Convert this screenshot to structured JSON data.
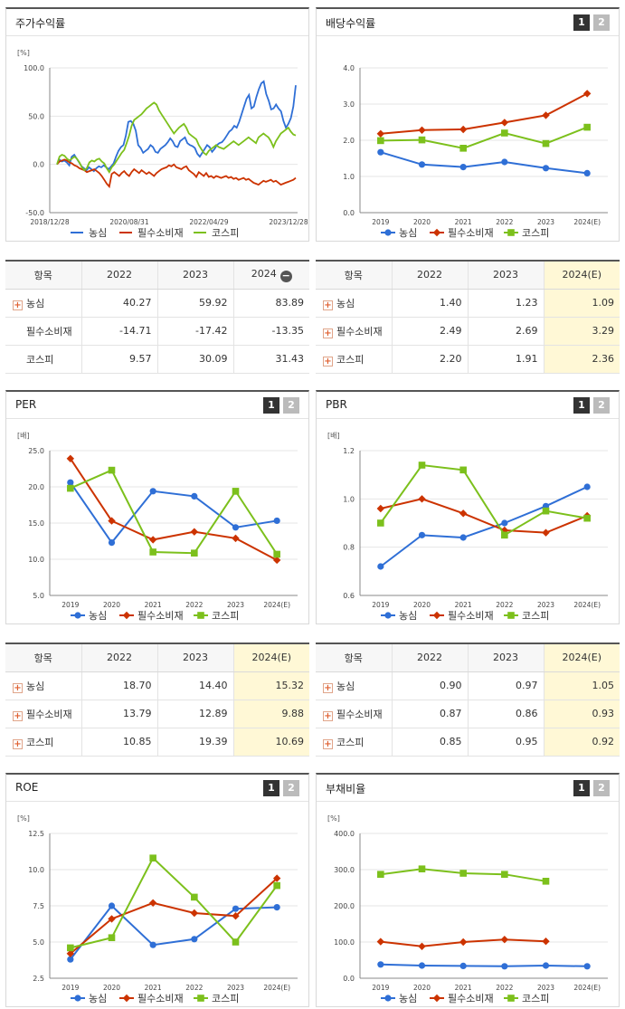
{
  "colors": {
    "nongshim": "#2f6fd6",
    "staples": "#cc3300",
    "kospi": "#7cc01c"
  },
  "legend": [
    "농심",
    "필수소비재",
    "코스피"
  ],
  "pager": {
    "p1": "1",
    "p2": "2"
  },
  "panels": {
    "price": {
      "title": "주가수익률",
      "unit": "[%]"
    },
    "div": {
      "title": "배당수익률",
      "unit": ""
    },
    "per": {
      "title": "PER",
      "unit": "[배]"
    },
    "pbr": {
      "title": "PBR",
      "unit": "[배]"
    },
    "roe": {
      "title": "ROE",
      "unit": "[%]"
    },
    "debt": {
      "title": "부채비율",
      "unit": "[%]"
    }
  },
  "chart_data": [
    {
      "id": "price",
      "type": "line",
      "title": "주가수익률",
      "ylim": [
        -50,
        100
      ],
      "yticks": [
        "100.0",
        "50.0",
        "0.0",
        "-50.0"
      ],
      "xticks": [
        "2018/12/28",
        "2020/08/31",
        "2022/04/29",
        "2023/12/28"
      ],
      "series": [
        {
          "name": "농심",
          "values": [
            0,
            5,
            3,
            4,
            2,
            -1,
            8,
            10,
            6,
            2,
            -2,
            -4,
            -6,
            -3,
            -5,
            -7,
            -4,
            -2,
            -3,
            -1,
            -3,
            -5,
            -2,
            1,
            8,
            14,
            18,
            20,
            30,
            44,
            45,
            42,
            35,
            20,
            17,
            12,
            14,
            16,
            20,
            18,
            13,
            12,
            16,
            18,
            20,
            23,
            27,
            24,
            19,
            18,
            24,
            26,
            28,
            22,
            20,
            19,
            17,
            11,
            8,
            12,
            16,
            20,
            18,
            13,
            16,
            20,
            22,
            23,
            26,
            30,
            34,
            36,
            40,
            38,
            44,
            52,
            60,
            68,
            72,
            58,
            60,
            70,
            78,
            84,
            86,
            73,
            66,
            57,
            58,
            62,
            58,
            55,
            45,
            38,
            42,
            48,
            60,
            82
          ]
        },
        {
          "name": "필수소비재",
          "values": [
            0,
            3,
            4,
            5,
            4,
            2,
            1,
            -1,
            -2,
            -4,
            -5,
            -6,
            -8,
            -7,
            -6,
            -5,
            -7,
            -9,
            -12,
            -16,
            -20,
            -23,
            -10,
            -8,
            -10,
            -12,
            -9,
            -7,
            -10,
            -12,
            -8,
            -5,
            -7,
            -9,
            -6,
            -8,
            -10,
            -8,
            -10,
            -12,
            -9,
            -7,
            -5,
            -4,
            -3,
            -1,
            -2,
            0,
            -3,
            -4,
            -5,
            -3,
            -2,
            -6,
            -8,
            -10,
            -13,
            -8,
            -10,
            -12,
            -9,
            -13,
            -12,
            -14,
            -12,
            -13,
            -14,
            -13,
            -12,
            -14,
            -13,
            -15,
            -14,
            -16,
            -15,
            -14,
            -16,
            -15,
            -17,
            -19,
            -20,
            -21,
            -19,
            -17,
            -18,
            -17,
            -16,
            -18,
            -17,
            -19,
            -21,
            -20,
            -19,
            -18,
            -17,
            -16,
            -14
          ]
        },
        {
          "name": "코스피",
          "values": [
            0,
            8,
            10,
            9,
            6,
            4,
            6,
            8,
            6,
            2,
            -3,
            -6,
            -4,
            2,
            4,
            3,
            5,
            6,
            3,
            1,
            -4,
            -8,
            -3,
            0,
            4,
            8,
            12,
            15,
            22,
            30,
            40,
            46,
            48,
            50,
            52,
            55,
            58,
            60,
            62,
            64,
            62,
            56,
            52,
            48,
            44,
            40,
            36,
            32,
            35,
            38,
            40,
            42,
            38,
            32,
            30,
            28,
            26,
            20,
            16,
            12,
            10,
            14,
            16,
            18,
            20,
            18,
            17,
            16,
            18,
            20,
            22,
            24,
            22,
            20,
            22,
            24,
            26,
            28,
            26,
            24,
            22,
            28,
            30,
            32,
            30,
            28,
            24,
            18,
            24,
            28,
            32,
            34,
            36,
            38,
            34,
            31,
            30
          ]
        }
      ]
    },
    {
      "id": "div",
      "type": "line",
      "title": "배당수익률",
      "ylim": [
        0,
        4
      ],
      "yticks": [
        "4.0",
        "3.0",
        "2.0",
        "1.0",
        "0.0"
      ],
      "categories": [
        "2019",
        "2020",
        "2021",
        "2022",
        "2023",
        "2024(E)"
      ],
      "series": [
        {
          "name": "농심",
          "values": [
            1.67,
            1.33,
            1.26,
            1.4,
            1.23,
            1.09
          ]
        },
        {
          "name": "필수소비재",
          "values": [
            2.18,
            2.28,
            2.3,
            2.49,
            2.69,
            3.29
          ]
        },
        {
          "name": "코스피",
          "values": [
            1.99,
            2.01,
            1.78,
            2.2,
            1.91,
            2.36
          ]
        }
      ]
    },
    {
      "id": "per",
      "type": "line",
      "title": "PER",
      "ylim": [
        5,
        25
      ],
      "yticks": [
        "25.0",
        "20.0",
        "15.0",
        "10.0",
        "5.0"
      ],
      "categories": [
        "2019",
        "2020",
        "2021",
        "2022",
        "2023",
        "2024(E)"
      ],
      "series": [
        {
          "name": "농심",
          "values": [
            20.6,
            12.3,
            19.4,
            18.7,
            14.4,
            15.32
          ]
        },
        {
          "name": "필수소비재",
          "values": [
            23.9,
            15.3,
            12.7,
            13.79,
            12.89,
            9.88
          ]
        },
        {
          "name": "코스피",
          "values": [
            19.8,
            22.3,
            11.0,
            10.85,
            19.39,
            10.69
          ]
        }
      ]
    },
    {
      "id": "pbr",
      "type": "line",
      "title": "PBR",
      "ylim": [
        0.6,
        1.2
      ],
      "yticks": [
        "1.2",
        "1.0",
        "0.8",
        "0.6"
      ],
      "categories": [
        "2019",
        "2020",
        "2021",
        "2022",
        "2023",
        "2024(E)"
      ],
      "series": [
        {
          "name": "농심",
          "values": [
            0.72,
            0.85,
            0.84,
            0.9,
            0.97,
            1.05
          ]
        },
        {
          "name": "필수소비재",
          "values": [
            0.96,
            1.0,
            0.94,
            0.87,
            0.86,
            0.93
          ]
        },
        {
          "name": "코스피",
          "values": [
            0.9,
            1.14,
            1.12,
            0.85,
            0.95,
            0.92
          ]
        }
      ]
    },
    {
      "id": "roe",
      "type": "line",
      "title": "ROE",
      "ylim": [
        2.5,
        12.5
      ],
      "yticks": [
        "12.5",
        "10.0",
        "7.5",
        "5.0",
        "2.5"
      ],
      "categories": [
        "2019",
        "2020",
        "2021",
        "2022",
        "2023",
        "2024(E)"
      ],
      "series": [
        {
          "name": "농심",
          "values": [
            3.8,
            7.5,
            4.8,
            5.2,
            7.3,
            7.4
          ]
        },
        {
          "name": "필수소비재",
          "values": [
            4.2,
            6.6,
            7.7,
            7.0,
            6.8,
            9.4
          ]
        },
        {
          "name": "코스피",
          "values": [
            4.6,
            5.3,
            10.8,
            8.1,
            5.0,
            8.9
          ]
        }
      ]
    },
    {
      "id": "debt",
      "type": "line",
      "title": "부채비율",
      "ylim": [
        0,
        400
      ],
      "yticks": [
        "400.0",
        "300.0",
        "200.0",
        "100.0",
        "0.0"
      ],
      "categories": [
        "2019",
        "2020",
        "2021",
        "2022",
        "2023",
        "2024(E)"
      ],
      "series": [
        {
          "name": "농심",
          "values": [
            38,
            35,
            34,
            33,
            35,
            33
          ]
        },
        {
          "name": "필수소비재",
          "values": [
            101,
            88,
            100,
            107,
            102,
            null
          ]
        },
        {
          "name": "코스피",
          "values": [
            287,
            302,
            290,
            287,
            268,
            null
          ]
        }
      ]
    }
  ],
  "tables": {
    "price": {
      "header": [
        "항목",
        "2022",
        "2023",
        "2024"
      ],
      "rows": [
        {
          "label": "농심",
          "plus": true,
          "values": [
            "40.27",
            "59.92",
            "83.89"
          ]
        },
        {
          "label": "필수소비재",
          "plus": false,
          "values": [
            "-14.71",
            "-17.42",
            "-13.35"
          ]
        },
        {
          "label": "코스피",
          "plus": false,
          "values": [
            "9.57",
            "30.09",
            "31.43"
          ]
        }
      ]
    },
    "div": {
      "header": [
        "항목",
        "2022",
        "2023",
        "2024(E)"
      ],
      "rows": [
        {
          "label": "농심",
          "plus": true,
          "values": [
            "1.40",
            "1.23",
            "1.09"
          ]
        },
        {
          "label": "필수소비재",
          "plus": true,
          "values": [
            "2.49",
            "2.69",
            "3.29"
          ]
        },
        {
          "label": "코스피",
          "plus": true,
          "values": [
            "2.20",
            "1.91",
            "2.36"
          ]
        }
      ]
    },
    "per": {
      "header": [
        "항목",
        "2022",
        "2023",
        "2024(E)"
      ],
      "rows": [
        {
          "label": "농심",
          "plus": true,
          "values": [
            "18.70",
            "14.40",
            "15.32"
          ]
        },
        {
          "label": "필수소비재",
          "plus": true,
          "values": [
            "13.79",
            "12.89",
            "9.88"
          ]
        },
        {
          "label": "코스피",
          "plus": true,
          "values": [
            "10.85",
            "19.39",
            "10.69"
          ]
        }
      ]
    },
    "pbr": {
      "header": [
        "항목",
        "2022",
        "2023",
        "2024(E)"
      ],
      "rows": [
        {
          "label": "농심",
          "plus": true,
          "values": [
            "0.90",
            "0.97",
            "1.05"
          ]
        },
        {
          "label": "필수소비재",
          "plus": true,
          "values": [
            "0.87",
            "0.86",
            "0.93"
          ]
        },
        {
          "label": "코스피",
          "plus": true,
          "values": [
            "0.85",
            "0.95",
            "0.92"
          ]
        }
      ]
    }
  }
}
